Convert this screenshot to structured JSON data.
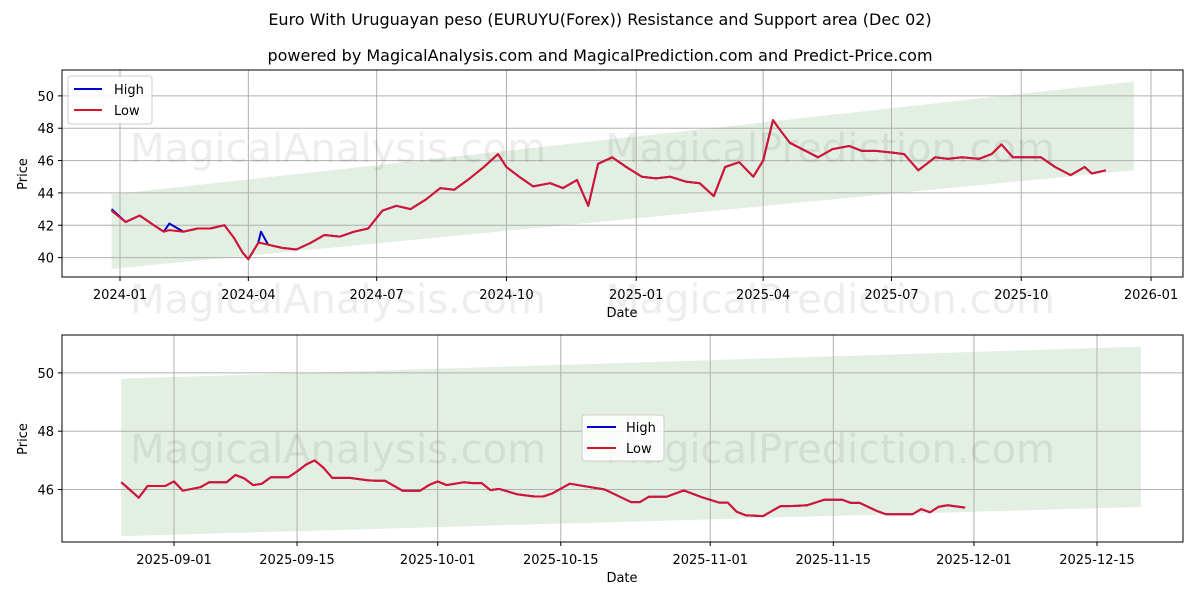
{
  "title": "Euro With Uruguayan peso (EURUYU(Forex)) Resistance and Support area (Dec 02)",
  "subtitle": "powered by MagicalAnalysis.com and MagicalPrediction.com and Predict-Price.com",
  "watermarks": [
    "MagicalAnalysis.com",
    "MagicalPrediction.com"
  ],
  "colors": {
    "high": "#0000cc",
    "low": "#d9132b",
    "band": "#e3efe3",
    "grid": "#b0b0b0"
  },
  "chart_data": [
    {
      "type": "line",
      "panel": "top",
      "title": "Euro With Uruguayan peso (EURUYU(Forex)) Resistance and Support area (Dec 02)",
      "xlabel": "Date",
      "ylabel": "Price",
      "ylim": [
        38.8,
        51.6
      ],
      "grid": true,
      "legend_position": "upper left",
      "legend": [
        "High",
        "Low"
      ],
      "x_ticks": [
        "2024-01",
        "2024-04",
        "2024-07",
        "2024-10",
        "2025-01",
        "2025-04",
        "2025-07",
        "2025-10",
        "2026-01"
      ],
      "y_ticks": [
        40,
        42,
        44,
        46,
        48,
        50
      ],
      "band": {
        "x_start": "2023-12-26",
        "x_end": "2025-12-20",
        "upper": [
          43.9,
          50.9
        ],
        "lower": [
          39.3,
          45.4
        ]
      },
      "x": [
        "2023-12-26",
        "2024-01-05",
        "2024-01-15",
        "2024-01-25",
        "2024-02-01",
        "2024-02-05",
        "2024-02-15",
        "2024-02-25",
        "2024-03-05",
        "2024-03-15",
        "2024-03-22",
        "2024-03-28",
        "2024-04-01",
        "2024-04-08",
        "2024-04-10",
        "2024-04-15",
        "2024-04-25",
        "2024-05-05",
        "2024-05-15",
        "2024-05-25",
        "2024-06-05",
        "2024-06-15",
        "2024-06-25",
        "2024-07-05",
        "2024-07-15",
        "2024-07-25",
        "2024-08-05",
        "2024-08-15",
        "2024-08-25",
        "2024-09-05",
        "2024-09-15",
        "2024-09-25",
        "2024-10-01",
        "2024-10-10",
        "2024-10-20",
        "2024-11-01",
        "2024-11-10",
        "2024-11-20",
        "2024-11-28",
        "2024-12-05",
        "2024-12-15",
        "2024-12-25",
        "2025-01-05",
        "2025-01-15",
        "2025-01-25",
        "2025-02-05",
        "2025-02-15",
        "2025-02-25",
        "2025-03-05",
        "2025-03-15",
        "2025-03-25",
        "2025-04-01",
        "2025-04-08",
        "2025-04-12",
        "2025-04-20",
        "2025-05-01",
        "2025-05-10",
        "2025-05-20",
        "2025-06-01",
        "2025-06-10",
        "2025-06-20",
        "2025-07-01",
        "2025-07-10",
        "2025-07-20",
        "2025-08-01",
        "2025-08-10",
        "2025-08-20",
        "2025-09-01",
        "2025-09-10",
        "2025-09-17",
        "2025-09-25",
        "2025-10-05",
        "2025-10-15",
        "2025-10-25",
        "2025-11-05",
        "2025-11-15",
        "2025-11-20",
        "2025-11-30"
      ],
      "series": [
        {
          "name": "High",
          "values": [
            43.0,
            42.2,
            42.6,
            42.0,
            41.6,
            42.1,
            41.6,
            41.8,
            41.8,
            42.0,
            41.2,
            40.3,
            39.9,
            40.9,
            41.6,
            40.8,
            40.6,
            40.5,
            40.9,
            41.4,
            41.3,
            41.6,
            41.8,
            42.9,
            43.2,
            43.0,
            43.6,
            44.3,
            44.2,
            44.9,
            45.6,
            46.4,
            45.6,
            45.0,
            44.4,
            44.6,
            44.3,
            44.8,
            43.2,
            45.8,
            46.2,
            45.6,
            45.0,
            44.9,
            45.0,
            44.7,
            44.6,
            43.8,
            45.6,
            45.9,
            45.0,
            46.0,
            48.5,
            48.0,
            47.1,
            46.6,
            46.2,
            46.7,
            46.9,
            46.6,
            46.6,
            46.5,
            46.4,
            45.4,
            46.2,
            46.1,
            46.2,
            46.1,
            46.4,
            47.0,
            46.2,
            46.2,
            46.2,
            45.6,
            45.1,
            45.6,
            45.2,
            45.4
          ]
        },
        {
          "name": "Low",
          "values": [
            42.9,
            42.2,
            42.6,
            42.0,
            41.6,
            41.7,
            41.6,
            41.8,
            41.8,
            42.0,
            41.2,
            40.3,
            39.9,
            40.9,
            40.9,
            40.8,
            40.6,
            40.5,
            40.9,
            41.4,
            41.3,
            41.6,
            41.8,
            42.9,
            43.2,
            43.0,
            43.6,
            44.3,
            44.2,
            44.9,
            45.6,
            46.4,
            45.6,
            45.0,
            44.4,
            44.6,
            44.3,
            44.8,
            43.2,
            45.8,
            46.2,
            45.6,
            45.0,
            44.9,
            45.0,
            44.7,
            44.6,
            43.8,
            45.6,
            45.9,
            45.0,
            46.0,
            48.5,
            48.0,
            47.1,
            46.6,
            46.2,
            46.7,
            46.9,
            46.6,
            46.6,
            46.5,
            46.4,
            45.4,
            46.2,
            46.1,
            46.2,
            46.1,
            46.4,
            47.0,
            46.2,
            46.2,
            46.2,
            45.6,
            45.1,
            45.6,
            45.2,
            45.4
          ]
        }
      ]
    },
    {
      "type": "line",
      "panel": "bottom",
      "xlabel": "Date",
      "ylabel": "Price",
      "ylim": [
        44.2,
        51.3
      ],
      "grid": true,
      "legend_position": "center",
      "legend": [
        "High",
        "Low"
      ],
      "x_ticks": [
        "2025-09-01",
        "2025-09-15",
        "2025-10-01",
        "2025-10-15",
        "2025-11-01",
        "2025-11-15",
        "2025-12-01",
        "2025-12-15"
      ],
      "y_ticks": [
        46,
        48,
        50
      ],
      "band": {
        "x_start": "2025-08-26",
        "x_end": "2025-12-20",
        "upper": [
          49.8,
          50.9
        ],
        "lower": [
          44.4,
          45.4
        ]
      },
      "x": [
        "2025-08-26",
        "2025-08-28",
        "2025-08-29",
        "2025-08-31",
        "2025-09-01",
        "2025-09-02",
        "2025-09-04",
        "2025-09-05",
        "2025-09-07",
        "2025-09-08",
        "2025-09-09",
        "2025-09-10",
        "2025-09-11",
        "2025-09-12",
        "2025-09-14",
        "2025-09-15",
        "2025-09-16",
        "2025-09-17",
        "2025-09-18",
        "2025-09-19",
        "2025-09-21",
        "2025-09-23",
        "2025-09-24",
        "2025-09-25",
        "2025-09-27",
        "2025-09-29",
        "2025-09-30",
        "2025-10-01",
        "2025-10-02",
        "2025-10-04",
        "2025-10-05",
        "2025-10-06",
        "2025-10-07",
        "2025-10-08",
        "2025-10-10",
        "2025-10-12",
        "2025-10-13",
        "2025-10-14",
        "2025-10-16",
        "2025-10-20",
        "2025-10-23",
        "2025-10-24",
        "2025-10-25",
        "2025-10-27",
        "2025-10-29",
        "2025-10-31",
        "2025-11-02",
        "2025-11-03",
        "2025-11-04",
        "2025-11-05",
        "2025-11-07",
        "2025-11-09",
        "2025-11-10",
        "2025-11-11",
        "2025-11-12",
        "2025-11-14",
        "2025-11-16",
        "2025-11-17",
        "2025-11-18",
        "2025-11-20",
        "2025-11-21",
        "2025-11-22",
        "2025-11-24",
        "2025-11-25",
        "2025-11-26",
        "2025-11-27",
        "2025-11-28",
        "2025-11-30"
      ],
      "series": [
        {
          "name": "High",
          "values": [
            46.25,
            45.72,
            46.12,
            46.12,
            46.28,
            45.96,
            46.08,
            46.25,
            46.25,
            46.5,
            46.38,
            46.15,
            46.2,
            46.42,
            46.42,
            46.62,
            46.85,
            47.0,
            46.75,
            46.4,
            46.4,
            46.32,
            46.3,
            46.3,
            45.96,
            45.96,
            46.15,
            46.28,
            46.15,
            46.25,
            46.22,
            46.22,
            45.98,
            46.02,
            45.84,
            45.76,
            45.76,
            45.86,
            46.2,
            46.0,
            45.57,
            45.57,
            45.75,
            45.75,
            45.97,
            45.74,
            45.55,
            45.55,
            45.24,
            45.12,
            45.09,
            45.43,
            45.43,
            45.44,
            45.46,
            45.65,
            45.65,
            45.54,
            45.54,
            45.26,
            45.15,
            45.15,
            45.15,
            45.33,
            45.22,
            45.41,
            45.46,
            45.38
          ]
        },
        {
          "name": "Low",
          "values": [
            46.25,
            45.72,
            46.12,
            46.12,
            46.28,
            45.96,
            46.08,
            46.25,
            46.25,
            46.5,
            46.38,
            46.15,
            46.2,
            46.42,
            46.42,
            46.62,
            46.85,
            47.0,
            46.75,
            46.4,
            46.4,
            46.32,
            46.3,
            46.3,
            45.96,
            45.96,
            46.15,
            46.28,
            46.15,
            46.25,
            46.22,
            46.22,
            45.98,
            46.02,
            45.84,
            45.76,
            45.76,
            45.86,
            46.2,
            46.0,
            45.57,
            45.57,
            45.75,
            45.75,
            45.97,
            45.74,
            45.55,
            45.55,
            45.24,
            45.12,
            45.09,
            45.43,
            45.43,
            45.44,
            45.46,
            45.65,
            45.65,
            45.54,
            45.54,
            45.26,
            45.15,
            45.15,
            45.15,
            45.33,
            45.22,
            45.41,
            45.46,
            45.38
          ]
        }
      ]
    }
  ]
}
